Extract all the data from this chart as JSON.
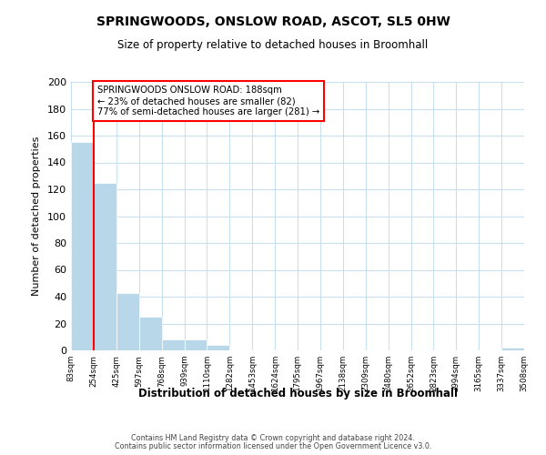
{
  "title": "SPRINGWOODS, ONSLOW ROAD, ASCOT, SL5 0HW",
  "subtitle": "Size of property relative to detached houses in Broomhall",
  "xlabel": "Distribution of detached houses by size in Broomhall",
  "ylabel": "Number of detached properties",
  "bar_values": [
    155,
    125,
    43,
    25,
    8,
    8,
    4,
    0,
    0,
    0,
    0,
    0,
    0,
    0,
    0,
    0,
    0,
    0,
    0,
    2
  ],
  "bar_color": "#b8d8ea",
  "tick_labels": [
    "83sqm",
    "254sqm",
    "425sqm",
    "597sqm",
    "768sqm",
    "939sqm",
    "1110sqm",
    "1282sqm",
    "1453sqm",
    "1624sqm",
    "1795sqm",
    "1967sqm",
    "2138sqm",
    "2309sqm",
    "2480sqm",
    "2652sqm",
    "2823sqm",
    "2994sqm",
    "3165sqm",
    "3337sqm",
    "3508sqm"
  ],
  "ylim": [
    0,
    200
  ],
  "yticks": [
    0,
    20,
    40,
    60,
    80,
    100,
    120,
    140,
    160,
    180,
    200
  ],
  "annotation_title": "SPRINGWOODS ONSLOW ROAD: 188sqm",
  "annotation_line1": "← 23% of detached houses are smaller (82)",
  "annotation_line2": "77% of semi-detached houses are larger (281) →",
  "footer1": "Contains HM Land Registry data © Crown copyright and database right 2024.",
  "footer2": "Contains public sector information licensed under the Open Government Licence v3.0.",
  "background_color": "#ffffff",
  "grid_color": "#c8dff0"
}
